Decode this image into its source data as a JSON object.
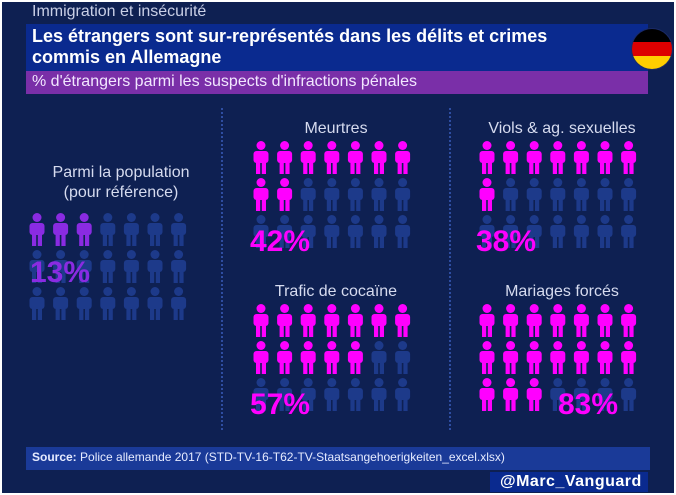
{
  "header": {
    "topic": "Immigration et insécurité",
    "title_line1": "Les étrangers sont sur-représentés  dans les délits et crimes",
    "title_line2": "commis en Allemagne",
    "subtitle": "% d'étrangers parmi les suspects d'infractions pénales"
  },
  "flag": {
    "country": "Germany",
    "colors": [
      "#000000",
      "#dd0000",
      "#ffce00"
    ]
  },
  "colors": {
    "background": "#0e2052",
    "highlight_magenta": "#ff00ff",
    "highlight_purple": "#8a2be2",
    "base_icon": "#1d3a8a"
  },
  "chart_data": [
    {
      "type": "pictogram",
      "title": "Parmi la population (pour référence)",
      "title_line1": "Parmi la population",
      "title_line2": "(pour référence)",
      "value_label": "13%",
      "value": 13,
      "highlighted_icons": 3,
      "total_icons": 21,
      "highlight_color": "#8a2be2"
    },
    {
      "type": "pictogram",
      "title": "Meurtres",
      "value_label": "42%",
      "value": 42,
      "highlighted_icons": 9,
      "total_icons": 21,
      "highlight_color": "#ff00ff"
    },
    {
      "type": "pictogram",
      "title": "Viols & ag. sexuelles",
      "value_label": "38%",
      "value": 38,
      "highlighted_icons": 8,
      "total_icons": 21,
      "highlight_color": "#ff00ff"
    },
    {
      "type": "pictogram",
      "title": "Trafic de cocaïne",
      "value_label": "57%",
      "value": 57,
      "highlighted_icons": 12,
      "total_icons": 21,
      "highlight_color": "#ff00ff"
    },
    {
      "type": "pictogram",
      "title": "Mariages forcés",
      "value_label": "83%",
      "value": 83,
      "highlighted_icons": 17,
      "total_icons": 21,
      "highlight_color": "#ff00ff"
    }
  ],
  "source": {
    "label": "Source:",
    "text": " Police allemande 2017  (STD-TV-16-T62-TV-Staatsangehoerigkeiten_excel.xlsx)"
  },
  "handle": "@Marc_Vanguard"
}
